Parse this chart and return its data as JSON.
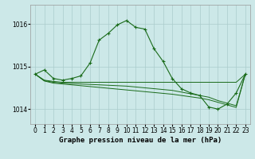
{
  "title": "Graphe pression niveau de la mer (hPa)",
  "background_color": "#cce8e8",
  "grid_color": "#aacccc",
  "line_color": "#1a6b1a",
  "ylim": [
    1013.65,
    1016.45
  ],
  "yticks": [
    1014,
    1015,
    1016
  ],
  "xlim": [
    -0.5,
    23.5
  ],
  "xticks": [
    0,
    1,
    2,
    3,
    4,
    5,
    6,
    7,
    8,
    9,
    10,
    11,
    12,
    13,
    14,
    15,
    16,
    17,
    18,
    19,
    20,
    21,
    22,
    23
  ],
  "main_series": [
    1014.82,
    1014.92,
    1014.72,
    1014.68,
    1014.72,
    1014.78,
    1015.08,
    1015.62,
    1015.78,
    1015.98,
    1016.08,
    1015.92,
    1015.88,
    1015.42,
    1015.12,
    1014.72,
    1014.48,
    1014.38,
    1014.32,
    1014.05,
    1014.0,
    1014.12,
    1014.38,
    1014.82
  ],
  "flat_line1": [
    1014.82,
    1014.68,
    1014.65,
    1014.63,
    1014.63,
    1014.63,
    1014.63,
    1014.63,
    1014.63,
    1014.63,
    1014.63,
    1014.63,
    1014.63,
    1014.63,
    1014.63,
    1014.63,
    1014.63,
    1014.63,
    1014.63,
    1014.63,
    1014.63,
    1014.63,
    1014.63,
    1014.82
  ],
  "flat_line2": [
    1014.82,
    1014.67,
    1014.63,
    1014.61,
    1014.6,
    1014.59,
    1014.58,
    1014.57,
    1014.56,
    1014.55,
    1014.54,
    1014.52,
    1014.5,
    1014.48,
    1014.46,
    1014.44,
    1014.4,
    1014.36,
    1014.32,
    1014.28,
    1014.2,
    1014.14,
    1014.08,
    1014.82
  ],
  "flat_line3": [
    1014.82,
    1014.66,
    1014.61,
    1014.59,
    1014.57,
    1014.55,
    1014.53,
    1014.51,
    1014.49,
    1014.47,
    1014.45,
    1014.43,
    1014.41,
    1014.39,
    1014.37,
    1014.35,
    1014.32,
    1014.29,
    1014.26,
    1014.22,
    1014.16,
    1014.1,
    1014.04,
    1014.82
  ],
  "tick_fontsize": 5.5,
  "title_fontsize": 6.5
}
